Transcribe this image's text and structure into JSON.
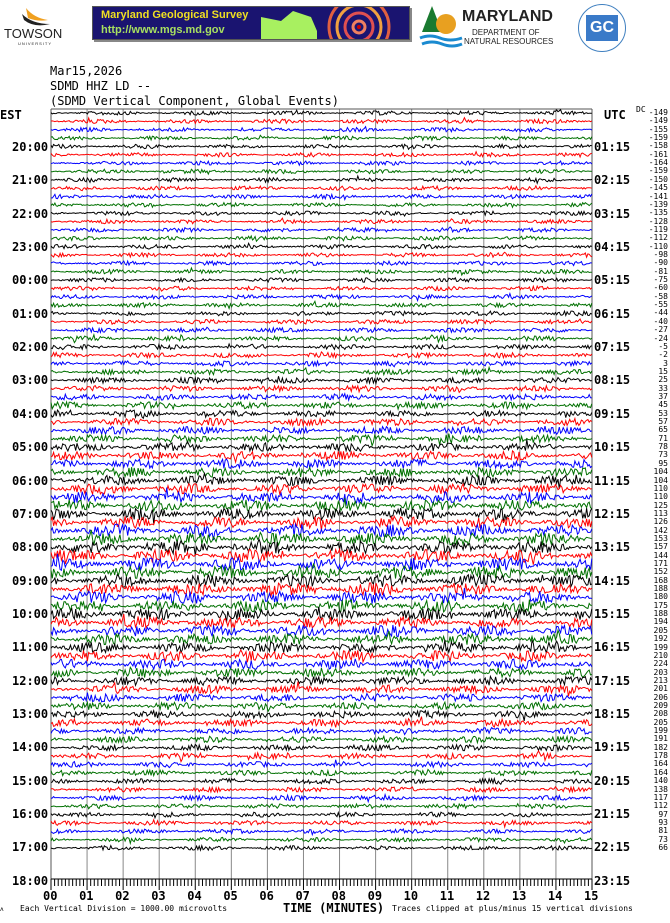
{
  "logos": {
    "towson": {
      "name": "TOWSON",
      "sub": "UNIVERSITY"
    },
    "mgs": {
      "title": "Maryland Geological Survey",
      "url": "http://www.mgs.md.gov"
    },
    "dnr": {
      "name": "MARYLAND",
      "line2": "DEPARTMENT OF",
      "line3": "NATURAL RESOURCES"
    },
    "garrett": {
      "initials": "GC"
    }
  },
  "chart_data": {
    "type": "line",
    "title_lines": [
      "Mar15,2026",
      "SDMD HHZ LD --",
      "(SDMD Vertical Component, Global Events)"
    ],
    "xlabel": "TIME (MINUTES)",
    "x_ticks": [
      "00",
      "01",
      "02",
      "03",
      "04",
      "05",
      "06",
      "07",
      "08",
      "09",
      "10",
      "11",
      "12",
      "13",
      "14",
      "15"
    ],
    "xlim": [
      0,
      15
    ],
    "left_axis_label": "EST",
    "right_axis_label": "UTC",
    "est_labels": [
      "20:00",
      "21:00",
      "22:00",
      "23:00",
      "00:00",
      "01:00",
      "02:00",
      "03:00",
      "04:00",
      "05:00",
      "06:00",
      "07:00",
      "08:00",
      "09:00",
      "10:00",
      "11:00",
      "12:00",
      "13:00",
      "14:00",
      "15:00",
      "16:00",
      "17:00",
      "18:00"
    ],
    "utc_labels": [
      "01:15",
      "02:15",
      "03:15",
      "04:15",
      "05:15",
      "06:15",
      "07:15",
      "08:15",
      "09:15",
      "10:15",
      "11:15",
      "12:15",
      "13:15",
      "14:15",
      "15:15",
      "16:15",
      "17:15",
      "18:15",
      "19:15",
      "20:15",
      "21:15",
      "22:15",
      "23:15"
    ],
    "dc_header": "DC",
    "dc_offsets": [
      -149,
      -149,
      -155,
      -159,
      -158,
      -161,
      -164,
      -159,
      -150,
      -145,
      -141,
      -139,
      -135,
      -128,
      -119,
      -112,
      -110,
      -98,
      -90,
      -81,
      -75,
      -60,
      -58,
      -55,
      -44,
      -40,
      -27,
      -24,
      -5,
      -2,
      3,
      15,
      25,
      33,
      37,
      45,
      53,
      57,
      65,
      71,
      78,
      73,
      95,
      104,
      104,
      110,
      110,
      125,
      113,
      126,
      142,
      153,
      157,
      144,
      171,
      152,
      168,
      188,
      180,
      175,
      188,
      194,
      205,
      192,
      199,
      210,
      224,
      203,
      213,
      201,
      206,
      209,
      208,
      205,
      199,
      191,
      182,
      178,
      164,
      164,
      140,
      138,
      117,
      112,
      97,
      93,
      81,
      73,
      66
    ],
    "trace_colors": [
      "#000000",
      "#ff0000",
      "#0000ff",
      "#007000"
    ],
    "grid": true,
    "footer_left": "Each Vertical Division = 1000.00 microvolts",
    "footer_right": "Traces clipped at plus/minus 15 vertical divisions"
  }
}
